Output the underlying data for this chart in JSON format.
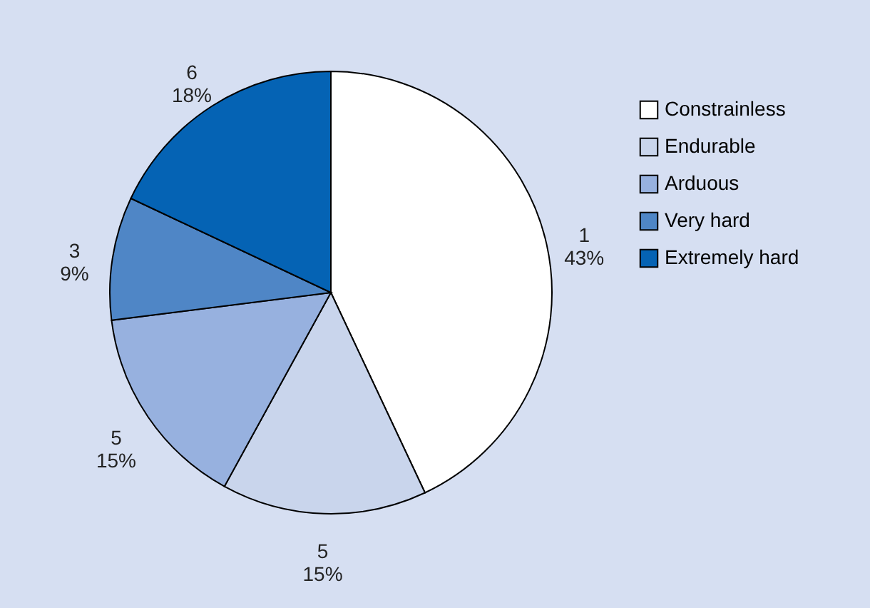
{
  "chart_data": {
    "type": "pie",
    "categories": [
      "Constrainless",
      "Endurable",
      "Arduous",
      "Very hard",
      "Extremely hard"
    ],
    "values": [
      43,
      15,
      15,
      9,
      18
    ],
    "colors": [
      "#ffffff",
      "#c9d5ec",
      "#97b1df",
      "#4f86c6",
      "#0563b4"
    ],
    "value_labels": [
      "1\n43%",
      "5\n15%",
      "5\n15%",
      "3\n9%",
      "6\n18%"
    ],
    "legend": "top right"
  }
}
